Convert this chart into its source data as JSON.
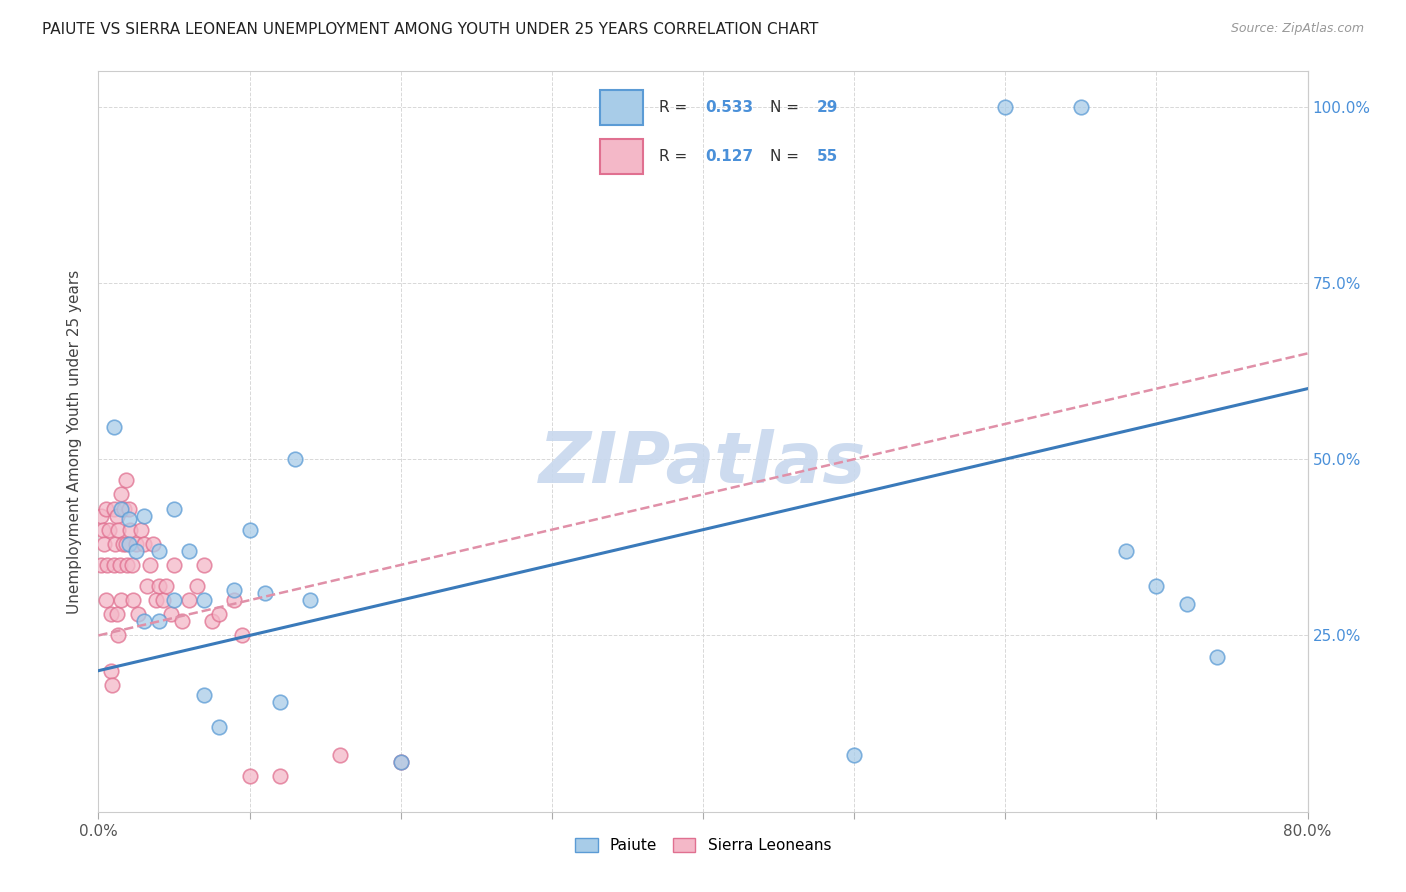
{
  "title": "PAIUTE VS SIERRA LEONEAN UNEMPLOYMENT AMONG YOUTH UNDER 25 YEARS CORRELATION CHART",
  "source": "Source: ZipAtlas.com",
  "ylabel": "Unemployment Among Youth under 25 years",
  "xlim": [
    0.0,
    0.8
  ],
  "ylim": [
    0.0,
    1.05
  ],
  "paiute_R": 0.533,
  "paiute_N": 29,
  "sierra_R": 0.127,
  "sierra_N": 55,
  "paiute_color": "#a8cce8",
  "paiute_edge_color": "#5b9bd5",
  "sierra_color": "#f4b8c8",
  "sierra_edge_color": "#e07090",
  "paiute_line_color": "#3a7aba",
  "sierra_line_color": "#e090a8",
  "grid_color": "#d8d8d8",
  "watermark_color": "#c8d8ee",
  "paiute_x": [
    0.01,
    0.015,
    0.02,
    0.02,
    0.025,
    0.03,
    0.03,
    0.04,
    0.04,
    0.05,
    0.05,
    0.06,
    0.07,
    0.07,
    0.08,
    0.09,
    0.1,
    0.11,
    0.12,
    0.13,
    0.14,
    0.2,
    0.5,
    0.6,
    0.65,
    0.68,
    0.7,
    0.72,
    0.74
  ],
  "paiute_y": [
    0.545,
    0.43,
    0.415,
    0.38,
    0.37,
    0.42,
    0.27,
    0.37,
    0.27,
    0.43,
    0.3,
    0.37,
    0.3,
    0.165,
    0.12,
    0.315,
    0.4,
    0.31,
    0.155,
    0.5,
    0.3,
    0.07,
    0.08,
    1.0,
    1.0,
    0.37,
    0.32,
    0.295,
    0.22
  ],
  "sierra_x": [
    0.002,
    0.002,
    0.003,
    0.004,
    0.005,
    0.005,
    0.006,
    0.007,
    0.008,
    0.008,
    0.009,
    0.01,
    0.01,
    0.011,
    0.012,
    0.012,
    0.013,
    0.013,
    0.014,
    0.015,
    0.015,
    0.016,
    0.017,
    0.018,
    0.018,
    0.019,
    0.02,
    0.021,
    0.022,
    0.023,
    0.025,
    0.026,
    0.028,
    0.03,
    0.032,
    0.034,
    0.036,
    0.038,
    0.04,
    0.043,
    0.045,
    0.048,
    0.05,
    0.055,
    0.06,
    0.065,
    0.07,
    0.075,
    0.08,
    0.09,
    0.095,
    0.1,
    0.12,
    0.16,
    0.2
  ],
  "sierra_y": [
    0.42,
    0.35,
    0.4,
    0.38,
    0.43,
    0.3,
    0.35,
    0.4,
    0.28,
    0.2,
    0.18,
    0.43,
    0.35,
    0.38,
    0.42,
    0.28,
    0.4,
    0.25,
    0.35,
    0.45,
    0.3,
    0.38,
    0.43,
    0.47,
    0.38,
    0.35,
    0.43,
    0.4,
    0.35,
    0.3,
    0.38,
    0.28,
    0.4,
    0.38,
    0.32,
    0.35,
    0.38,
    0.3,
    0.32,
    0.3,
    0.32,
    0.28,
    0.35,
    0.27,
    0.3,
    0.32,
    0.35,
    0.27,
    0.28,
    0.3,
    0.25,
    0.05,
    0.05,
    0.08,
    0.07
  ]
}
